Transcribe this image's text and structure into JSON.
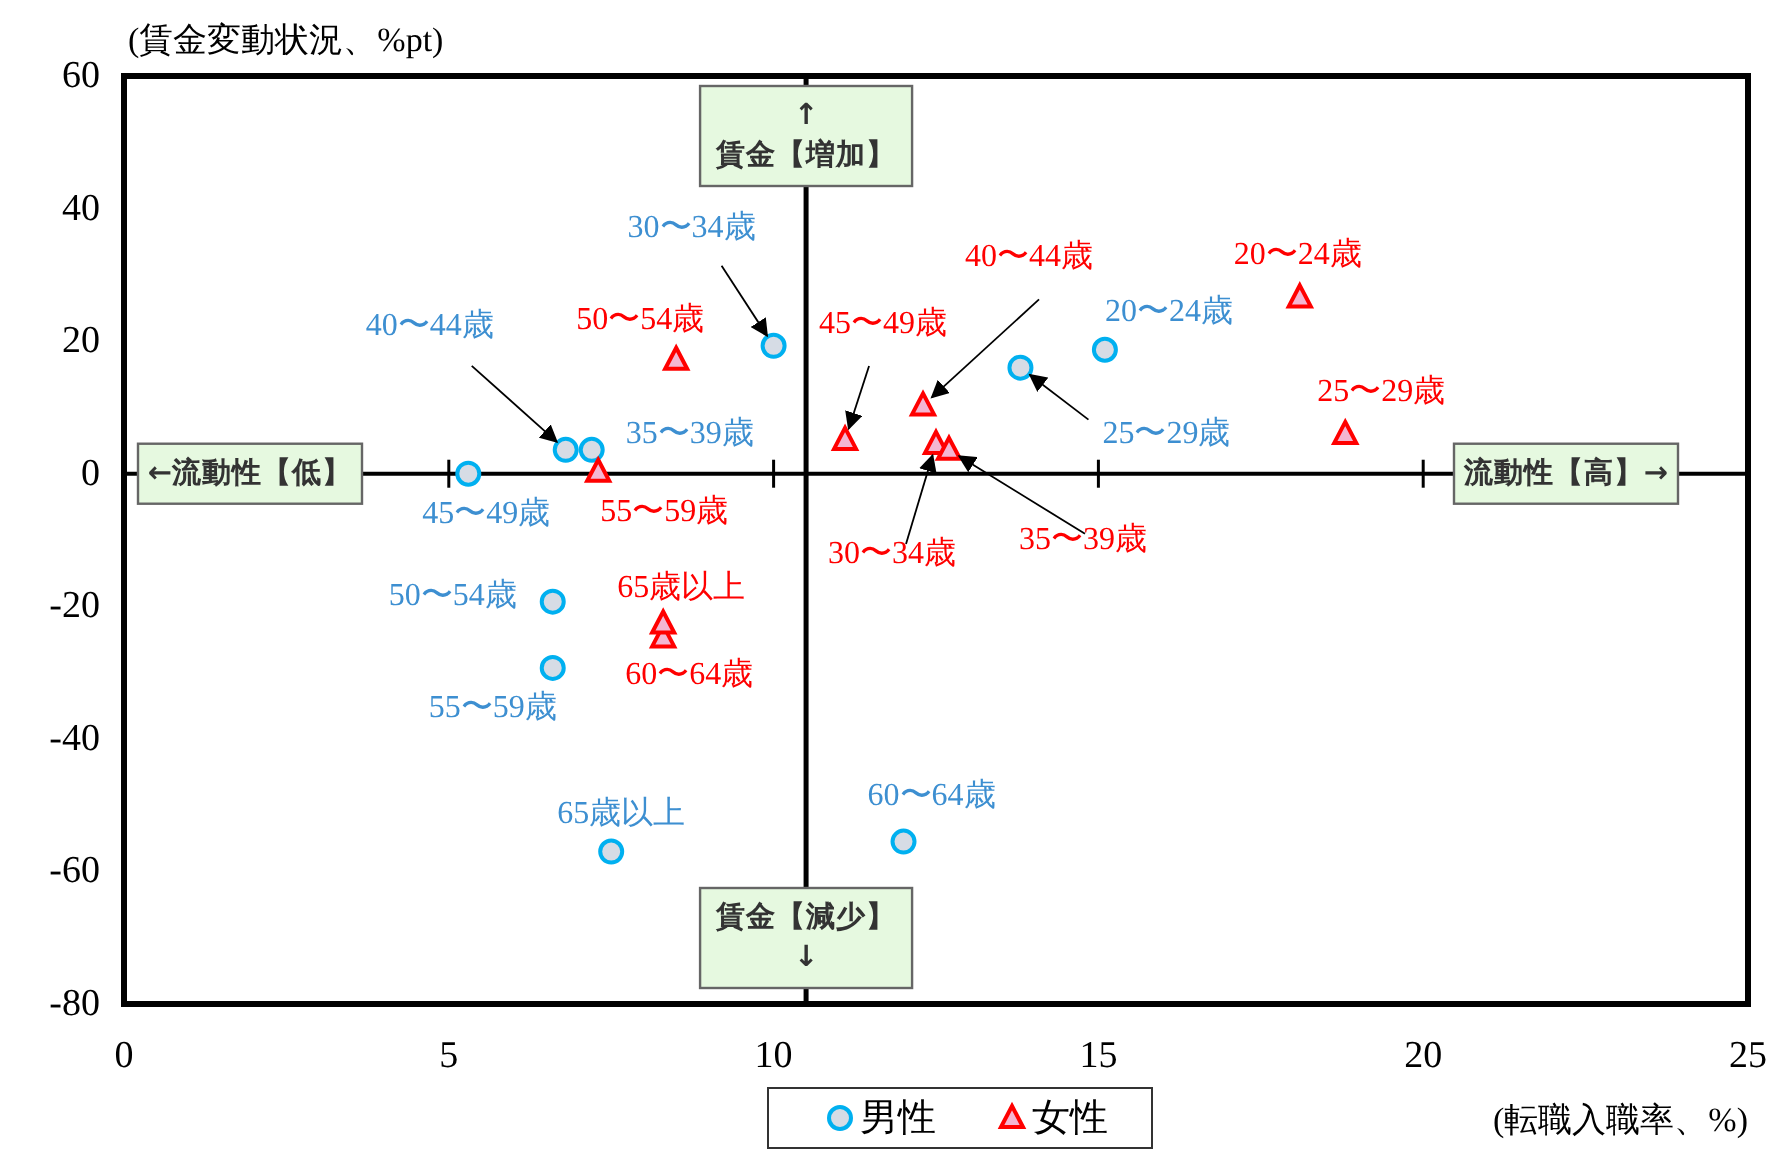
{
  "chart_data": {
    "type": "scatter",
    "xlabel": "(転職入職率、%)",
    "ylabel": "(賃金変動状況、%pt)",
    "xlim": [
      0,
      25
    ],
    "ylim": [
      -80,
      60
    ],
    "xticks": [
      0,
      5,
      10,
      15,
      20,
      25
    ],
    "yticks": [
      -80,
      -60,
      -40,
      -20,
      0,
      20,
      40,
      60
    ],
    "grid": false,
    "legend": "bottom",
    "series": [
      {
        "name": "男性",
        "color": "#00b0f0",
        "marker": "circle",
        "x": [
          15.1,
          13.8,
          10.0,
          7.2,
          6.8,
          5.3,
          6.6,
          6.6,
          12.0,
          7.5
        ],
        "values": [
          18.7,
          16.0,
          19.3,
          3.6,
          3.6,
          0.0,
          -19.3,
          -29.3,
          -55.5,
          -57.0
        ]
      },
      {
        "name": "女性",
        "color": "#ff0000",
        "marker": "triangle",
        "x": [
          18.1,
          18.8,
          12.5,
          12.7,
          12.3,
          11.1,
          8.5,
          7.3,
          8.3,
          8.3
        ],
        "values": [
          26.6,
          6.0,
          4.5,
          3.6,
          10.3,
          5.1,
          17.2,
          0.3,
          -24.7,
          -22.6
        ]
      }
    ],
    "ref_lines": [
      {
        "axis": "x",
        "value": 10.5
      },
      {
        "axis": "y",
        "value": 0
      }
    ],
    "annotations": [
      {
        "text": "20〜24歳",
        "x": 15.1,
        "y": 18.7
      },
      {
        "text": "25〜29歳",
        "x": 13.8,
        "y": 16.0
      },
      {
        "text": "30〜34歳",
        "x": 10.0,
        "y": 19.3
      },
      {
        "text": "35〜39歳",
        "x": 7.2,
        "y": 3.6
      },
      {
        "text": "40〜44歳",
        "x": 6.8,
        "y": 3.6
      },
      {
        "text": "45〜49歳",
        "x": 5.3,
        "y": 0.0
      },
      {
        "text": "50〜54歳",
        "x": 6.6,
        "y": -19.3
      },
      {
        "text": "55〜59歳",
        "x": 6.6,
        "y": -29.3
      },
      {
        "text": "60〜64歳",
        "x": 12.0,
        "y": -55.5
      },
      {
        "text": "65歳以上",
        "x": 7.5,
        "y": -57.0
      },
      {
        "text": "20〜24歳",
        "x": 18.1,
        "y": 26.6
      },
      {
        "text": "25〜29歳",
        "x": 18.8,
        "y": 6.0
      },
      {
        "text": "30〜34歳",
        "x": 12.5,
        "y": 4.5
      },
      {
        "text": "35〜39歳",
        "x": 12.7,
        "y": 3.6
      },
      {
        "text": "40〜44歳",
        "x": 12.3,
        "y": 10.3
      },
      {
        "text": "45〜49歳",
        "x": 11.1,
        "y": 5.1
      },
      {
        "text": "50〜54歳",
        "x": 8.5,
        "y": 17.2
      },
      {
        "text": "55〜59歳",
        "x": 7.3,
        "y": 0.3
      },
      {
        "text": "60〜64歳",
        "x": 8.3,
        "y": -24.7
      },
      {
        "text": "65歳以上",
        "x": 8.3,
        "y": -22.6
      },
      "↑\n賃金【増加】",
      "賃金【減少】\n↓",
      "←流動性【低】",
      "流動性【高】→"
    ]
  }
}
